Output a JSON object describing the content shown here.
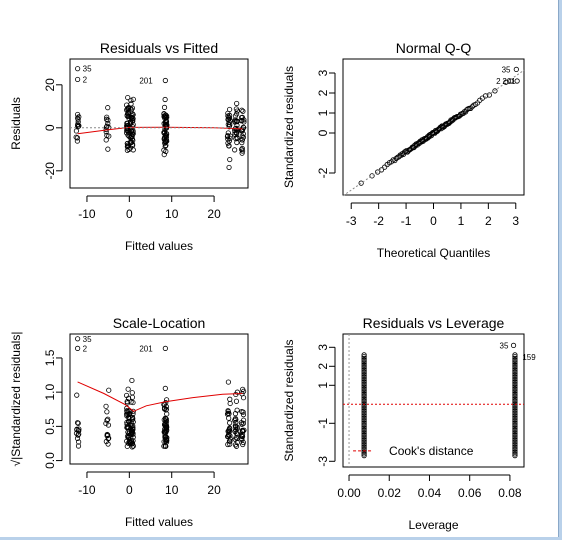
{
  "chart_data": [
    {
      "id": "rvf",
      "type": "scatter",
      "title": "Residuals vs Fitted",
      "xlabel": "Fitted values",
      "ylabel": "Residuals",
      "xlim": [
        -14,
        28
      ],
      "ylim": [
        -28,
        32
      ],
      "xticks": [
        -10,
        0,
        10,
        20
      ],
      "yticks": [
        -20,
        0,
        20
      ],
      "x_groups": [
        -12.2,
        -5.2,
        -0.3,
        0.6,
        8.5,
        23.5,
        25.2,
        26.7
      ],
      "smooth": [
        [
          -12.2,
          -2.8
        ],
        [
          -5.2,
          -1.0
        ],
        [
          0,
          0.2
        ],
        [
          8.5,
          0.3
        ],
        [
          20,
          0
        ],
        [
          26.7,
          -0.5
        ]
      ],
      "labels": [
        {
          "text": "35",
          "x": -12.2,
          "y": 27.5
        },
        {
          "text": "2",
          "x": -12.2,
          "y": 22.5
        },
        {
          "text": "201",
          "x": 8.5,
          "y": 22.0
        }
      ]
    },
    {
      "id": "qq",
      "type": "scatter",
      "title": "Normal Q-Q",
      "xlabel": "Theoretical Quantiles",
      "ylabel": "Standardized residuals",
      "xlim": [
        -3.3,
        3.3
      ],
      "ylim": [
        -3.1,
        3.7
      ],
      "xticks": [
        -3,
        -2,
        -1,
        0,
        1,
        2,
        3
      ],
      "yticks": [
        -2,
        0,
        1,
        2,
        3
      ],
      "reference_line": [
        [
          -3.3,
          -3.14
        ],
        [
          3.3,
          3.14
        ]
      ],
      "labels": [
        {
          "text": "35",
          "x": 2.92,
          "y": 3.18
        },
        {
          "text": "2",
          "x": 2.72,
          "y": 2.6
        },
        {
          "text": "201",
          "x": 2.95,
          "y": 2.6
        }
      ]
    },
    {
      "id": "sl",
      "type": "scatter",
      "title": "Scale-Location",
      "xlabel": "Fitted values",
      "ylabel": "√|Standardized residuals|",
      "xlim": [
        -14,
        28
      ],
      "ylim": [
        -0.05,
        1.85
      ],
      "xticks": [
        -10,
        0,
        10,
        20
      ],
      "yticks": [
        0.0,
        0.5,
        1.0,
        1.5
      ],
      "x_groups": [
        -12.2,
        -5.2,
        -0.3,
        0.6,
        8.5,
        23.5,
        25.2,
        26.7
      ],
      "smooth": [
        [
          -12.2,
          1.15
        ],
        [
          -6,
          0.98
        ],
        [
          -1,
          0.82
        ],
        [
          1,
          0.72
        ],
        [
          4,
          0.8
        ],
        [
          8.5,
          0.86
        ],
        [
          15,
          0.92
        ],
        [
          22,
          0.97
        ],
        [
          26.7,
          0.98
        ]
      ],
      "labels": [
        {
          "text": "35",
          "x": -12.2,
          "y": 1.78
        },
        {
          "text": "2",
          "x": -12.2,
          "y": 1.64
        },
        {
          "text": "201",
          "x": 8.5,
          "y": 1.64
        }
      ]
    },
    {
      "id": "rvl",
      "type": "scatter",
      "title": "Residuals vs Leverage",
      "xlabel": "Leverage",
      "ylabel": "Standardized residuals",
      "xlim": [
        -0.003,
        0.087
      ],
      "ylim": [
        -3.3,
        3.7
      ],
      "xticks": [
        0.0,
        0.02,
        0.04,
        0.06,
        0.08
      ],
      "yticks": [
        -3,
        -1,
        1,
        2,
        3
      ],
      "x_groups": [
        0.0075,
        0.0825
      ],
      "legend": "Cook's distance",
      "labels": [
        {
          "text": "35",
          "x": 0.0818,
          "y": 3.1
        },
        {
          "text": "159",
          "x": 0.0832,
          "y": 2.5
        }
      ]
    }
  ],
  "colors": {
    "points": "#000000",
    "smooth": "#e00000",
    "cook": "#e00000",
    "axis": "#000000"
  }
}
